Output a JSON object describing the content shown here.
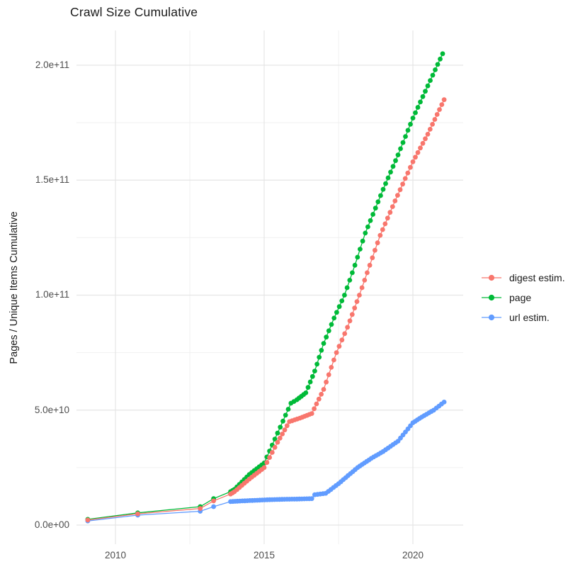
{
  "title": "Crawl Size Cumulative",
  "y_axis_label": "Pages / Unique Items Cumulative",
  "y_ticks": [
    "2.0e+11",
    "1.5e+11",
    "1.0e+11",
    "5.0e+10",
    "0.0e+00"
  ],
  "x_ticks": [
    "2010",
    "2015",
    "2020"
  ],
  "legend": {
    "items": [
      {
        "label": "digest estim.",
        "color": "#F8766D"
      },
      {
        "label": "page",
        "color": "#00BA38"
      },
      {
        "label": "url estim.",
        "color": "#619CFF"
      }
    ]
  },
  "chart_data": {
    "type": "line",
    "title": "Crawl Size Cumulative",
    "xlabel": "",
    "ylabel": "Pages / Unique Items Cumulative",
    "xlim": [
      2008.7,
      2021.7
    ],
    "ylim": [
      -6500000000.0,
      215000000000.0
    ],
    "x_tick_values": [
      2010,
      2015,
      2020
    ],
    "x_minor_tick_values": [
      2012.5,
      2017.5
    ],
    "y_tick_values": [
      0,
      50000000000.0,
      100000000000.0,
      150000000000.0,
      200000000000.0
    ],
    "y_minor_tick_values": [
      25000000000.0,
      75000000000.0,
      125000000000.0,
      175000000000.0
    ],
    "grid": true,
    "legend_position": "right",
    "marker": "filled-circle-with-connecting-line",
    "monthly_dots_from": 2013.85,
    "series": [
      {
        "name": "digest estim.",
        "color": "#F8766D",
        "points": [
          [
            2009.07,
            2200000000.0
          ],
          [
            2010.75,
            4900000000.0
          ],
          [
            2012.85,
            7200000000.0
          ],
          [
            2013.3,
            10500000000.0
          ],
          [
            2013.87,
            13500000000.0
          ],
          [
            2014.0,
            14500000000.0
          ],
          [
            2014.5,
            20000000000.0
          ],
          [
            2015.0,
            25000000000.0
          ],
          [
            2015.45,
            36000000000.0
          ],
          [
            2015.85,
            45000000000.0
          ],
          [
            2016.2,
            46500000000.0
          ],
          [
            2016.6,
            48500000000.0
          ],
          [
            2017.0,
            59000000000.0
          ],
          [
            2017.43,
            75000000000.0
          ],
          [
            2017.8,
            86000000000.0
          ],
          [
            2018.2,
            100000000000.0
          ],
          [
            2018.55,
            113000000000.0
          ],
          [
            2018.9,
            126000000000.0
          ],
          [
            2019.4,
            141000000000.0
          ],
          [
            2020.0,
            158000000000.0
          ],
          [
            2020.5,
            170000000000.0
          ],
          [
            2021.05,
            185000000000.0
          ]
        ]
      },
      {
        "name": "page",
        "color": "#00BA38",
        "points": [
          [
            2009.07,
            2500000000.0
          ],
          [
            2010.75,
            5300000000.0
          ],
          [
            2012.85,
            8000000000.0
          ],
          [
            2013.3,
            11500000000.0
          ],
          [
            2013.87,
            14500000000.0
          ],
          [
            2014.0,
            15500000000.0
          ],
          [
            2014.5,
            22000000000.0
          ],
          [
            2015.0,
            27000000000.0
          ],
          [
            2015.45,
            40000000000.0
          ],
          [
            2015.9,
            53000000000.0
          ],
          [
            2016.1,
            54500000000.0
          ],
          [
            2016.4,
            57500000000.0
          ],
          [
            2016.7,
            67000000000.0
          ],
          [
            2017.0,
            79000000000.0
          ],
          [
            2017.35,
            90000000000.0
          ],
          [
            2017.7,
            100000000000.0
          ],
          [
            2018.05,
            113000000000.0
          ],
          [
            2018.4,
            127000000000.0
          ],
          [
            2019.0,
            146000000000.0
          ],
          [
            2019.5,
            161000000000.0
          ],
          [
            2020.0,
            177000000000.0
          ],
          [
            2020.5,
            191000000000.0
          ],
          [
            2021.0,
            205000000000.0
          ]
        ]
      },
      {
        "name": "url estim.",
        "color": "#619CFF",
        "points": [
          [
            2009.07,
            1800000000.0
          ],
          [
            2010.75,
            4300000000.0
          ],
          [
            2012.85,
            6000000000.0
          ],
          [
            2013.3,
            8000000000.0
          ],
          [
            2013.87,
            10200000000.0
          ],
          [
            2014.1,
            10400000000.0
          ],
          [
            2014.6,
            10700000000.0
          ],
          [
            2015.1,
            11000000000.0
          ],
          [
            2015.6,
            11200000000.0
          ],
          [
            2016.1,
            11300000000.0
          ],
          [
            2016.6,
            11500000000.0
          ],
          [
            2016.7,
            13200000000.0
          ],
          [
            2017.07,
            13800000000.0
          ],
          [
            2017.5,
            18000000000.0
          ],
          [
            2018.14,
            25000000000.0
          ],
          [
            2018.6,
            29000000000.0
          ],
          [
            2019.0,
            32000000000.0
          ],
          [
            2019.5,
            36500000000.0
          ],
          [
            2020.0,
            44500000000.0
          ],
          [
            2020.3,
            47000000000.0
          ],
          [
            2020.7,
            50000000000.0
          ],
          [
            2021.05,
            53500000000.0
          ]
        ]
      }
    ]
  }
}
